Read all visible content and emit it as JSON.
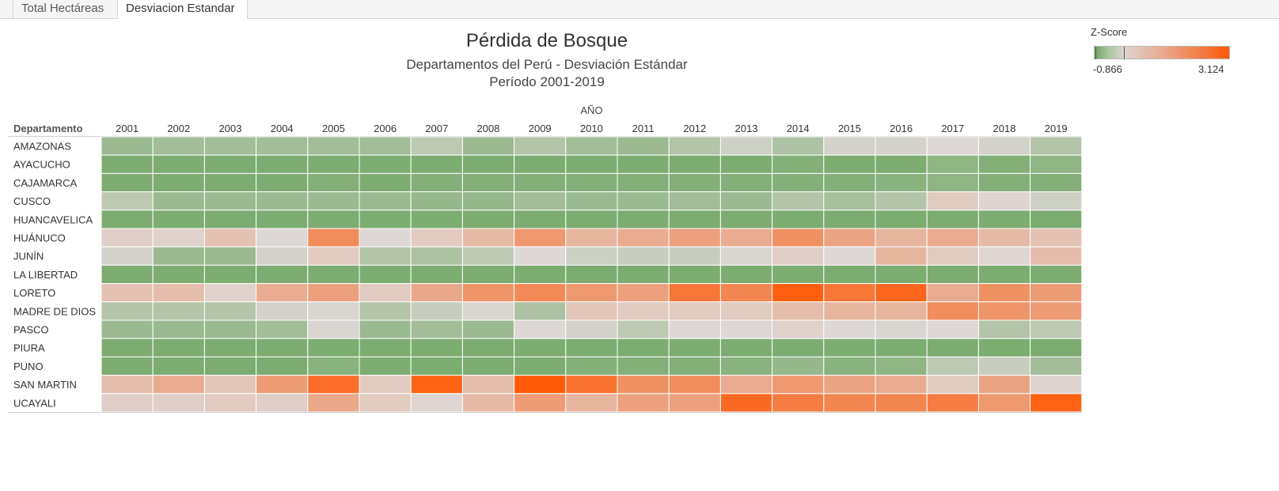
{
  "tabs": [
    {
      "label": "Total Hectáreas",
      "active": false
    },
    {
      "label": "Desviacion Estandar",
      "active": true
    }
  ],
  "legend": {
    "title": "Z-Score",
    "min_label": "-0.866",
    "max_label": "3.124",
    "colors": {
      "low": "#6fa263",
      "mid": "#dcd5d0",
      "high": "#ff5a07"
    }
  },
  "chart_data": {
    "type": "heatmap",
    "title": "Pérdida de Bosque",
    "subtitle": "Departamentos del Perú - Desviación Estándar",
    "period": "Período 2001-2019",
    "x_title": "AÑO",
    "y_title": "Departamento",
    "zlim": [
      -0.866,
      3.124
    ],
    "x": [
      "2001",
      "2002",
      "2003",
      "2004",
      "2005",
      "2006",
      "2007",
      "2008",
      "2009",
      "2010",
      "2011",
      "2012",
      "2013",
      "2014",
      "2015",
      "2016",
      "2017",
      "2018",
      "2019"
    ],
    "y": [
      "AMAZONAS",
      "AYACUCHO",
      "CAJAMARCA",
      "CUSCO",
      "HUANCAVELICA",
      "HUÁNUCO",
      "JUNÍN",
      "LA LIBERTAD",
      "LORETO",
      "MADRE DE DIOS",
      "PASCO",
      "PIURA",
      "PUNO",
      "SAN MARTIN",
      "UCAYALI"
    ],
    "z": [
      [
        -0.6,
        -0.55,
        -0.55,
        -0.55,
        -0.55,
        -0.55,
        -0.3,
        -0.6,
        -0.4,
        -0.55,
        -0.6,
        -0.4,
        -0.15,
        -0.45,
        -0.1,
        -0.1,
        0.0,
        -0.1,
        -0.4
      ],
      [
        -0.85,
        -0.85,
        -0.85,
        -0.85,
        -0.85,
        -0.85,
        -0.85,
        -0.85,
        -0.85,
        -0.85,
        -0.85,
        -0.85,
        -0.85,
        -0.8,
        -0.85,
        -0.85,
        -0.7,
        -0.8,
        -0.7
      ],
      [
        -0.85,
        -0.85,
        -0.85,
        -0.85,
        -0.8,
        -0.85,
        -0.8,
        -0.8,
        -0.8,
        -0.8,
        -0.8,
        -0.8,
        -0.8,
        -0.8,
        -0.8,
        -0.75,
        -0.7,
        -0.8,
        -0.8
      ],
      [
        -0.3,
        -0.6,
        -0.6,
        -0.6,
        -0.6,
        -0.6,
        -0.65,
        -0.65,
        -0.55,
        -0.6,
        -0.6,
        -0.55,
        -0.6,
        -0.4,
        -0.5,
        -0.4,
        0.3,
        0.1,
        -0.15
      ],
      [
        -0.85,
        -0.85,
        -0.85,
        -0.85,
        -0.85,
        -0.85,
        -0.85,
        -0.85,
        -0.85,
        -0.85,
        -0.85,
        -0.85,
        -0.85,
        -0.85,
        -0.85,
        -0.85,
        -0.85,
        -0.85,
        -0.85
      ],
      [
        0.2,
        0.15,
        0.5,
        0.0,
        1.8,
        0.0,
        0.3,
        0.7,
        1.5,
        0.8,
        1.0,
        1.3,
        1.0,
        1.7,
        1.2,
        0.8,
        1.0,
        0.7,
        0.5
      ],
      [
        -0.1,
        -0.6,
        -0.6,
        -0.1,
        0.3,
        -0.4,
        -0.45,
        -0.3,
        0.0,
        -0.15,
        -0.2,
        -0.2,
        -0.05,
        0.2,
        0.0,
        0.8,
        0.3,
        0.05,
        0.6
      ],
      [
        -0.85,
        -0.85,
        -0.85,
        -0.85,
        -0.85,
        -0.85,
        -0.85,
        -0.85,
        -0.85,
        -0.85,
        -0.85,
        -0.85,
        -0.85,
        -0.85,
        -0.85,
        -0.85,
        -0.85,
        -0.85,
        -0.85
      ],
      [
        0.5,
        0.6,
        0.15,
        1.0,
        1.3,
        0.3,
        1.1,
        1.6,
        1.9,
        1.5,
        1.3,
        2.4,
        2.0,
        3.0,
        2.4,
        2.8,
        1.0,
        1.7,
        1.4
      ],
      [
        -0.4,
        -0.4,
        -0.4,
        -0.1,
        -0.05,
        -0.4,
        -0.2,
        -0.05,
        -0.45,
        0.4,
        0.3,
        0.3,
        0.3,
        0.6,
        0.8,
        0.8,
        1.8,
        1.6,
        1.4
      ],
      [
        -0.6,
        -0.6,
        -0.6,
        -0.55,
        -0.05,
        -0.6,
        -0.55,
        -0.6,
        0.0,
        -0.1,
        -0.3,
        0.0,
        0.0,
        0.15,
        0.0,
        -0.05,
        0.0,
        -0.4,
        -0.3
      ],
      [
        -0.85,
        -0.85,
        -0.85,
        -0.85,
        -0.85,
        -0.85,
        -0.85,
        -0.85,
        -0.85,
        -0.85,
        -0.85,
        -0.85,
        -0.85,
        -0.85,
        -0.85,
        -0.85,
        -0.85,
        -0.85,
        -0.85
      ],
      [
        -0.85,
        -0.85,
        -0.85,
        -0.85,
        -0.75,
        -0.85,
        -0.85,
        -0.85,
        -0.85,
        -0.8,
        -0.8,
        -0.8,
        -0.75,
        -0.65,
        -0.75,
        -0.7,
        -0.3,
        -0.2,
        -0.55
      ],
      [
        0.6,
        1.0,
        0.4,
        1.4,
        2.6,
        0.3,
        2.9,
        0.6,
        3.12,
        2.5,
        1.7,
        1.8,
        1.0,
        1.5,
        1.2,
        1.0,
        0.3,
        1.2,
        0.1
      ],
      [
        0.2,
        0.2,
        0.3,
        0.2,
        1.1,
        0.3,
        0.05,
        0.7,
        1.4,
        0.8,
        1.3,
        1.3,
        2.7,
        2.2,
        2.0,
        2.0,
        2.2,
        1.5,
        2.9
      ]
    ]
  }
}
